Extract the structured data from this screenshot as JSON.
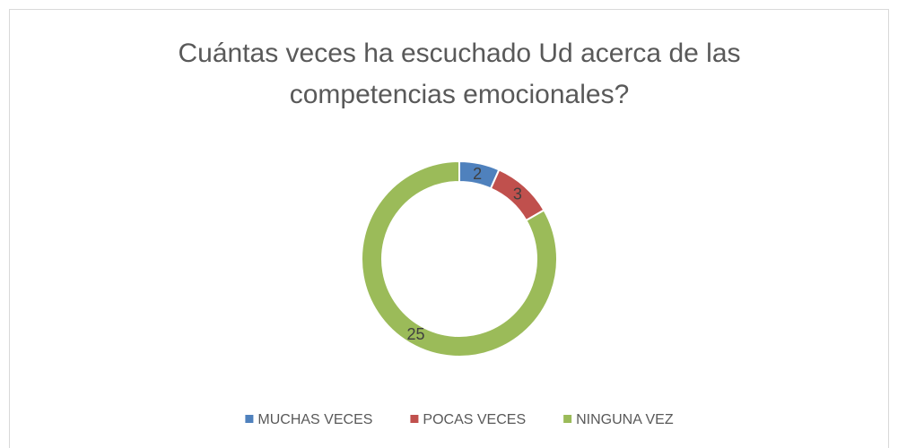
{
  "chart_data": {
    "type": "doughnut",
    "title": [
      "Cuántas veces ha escuchado Ud acerca de las",
      "competencias emocionales?"
    ],
    "categories": [
      "MUCHAS VECES",
      "POCAS VECES",
      "NINGUNA VEZ"
    ],
    "values": [
      2,
      3,
      25
    ],
    "colors": [
      "#4f81bd",
      "#c0504d",
      "#9bbb59"
    ],
    "legend": "bottom"
  }
}
